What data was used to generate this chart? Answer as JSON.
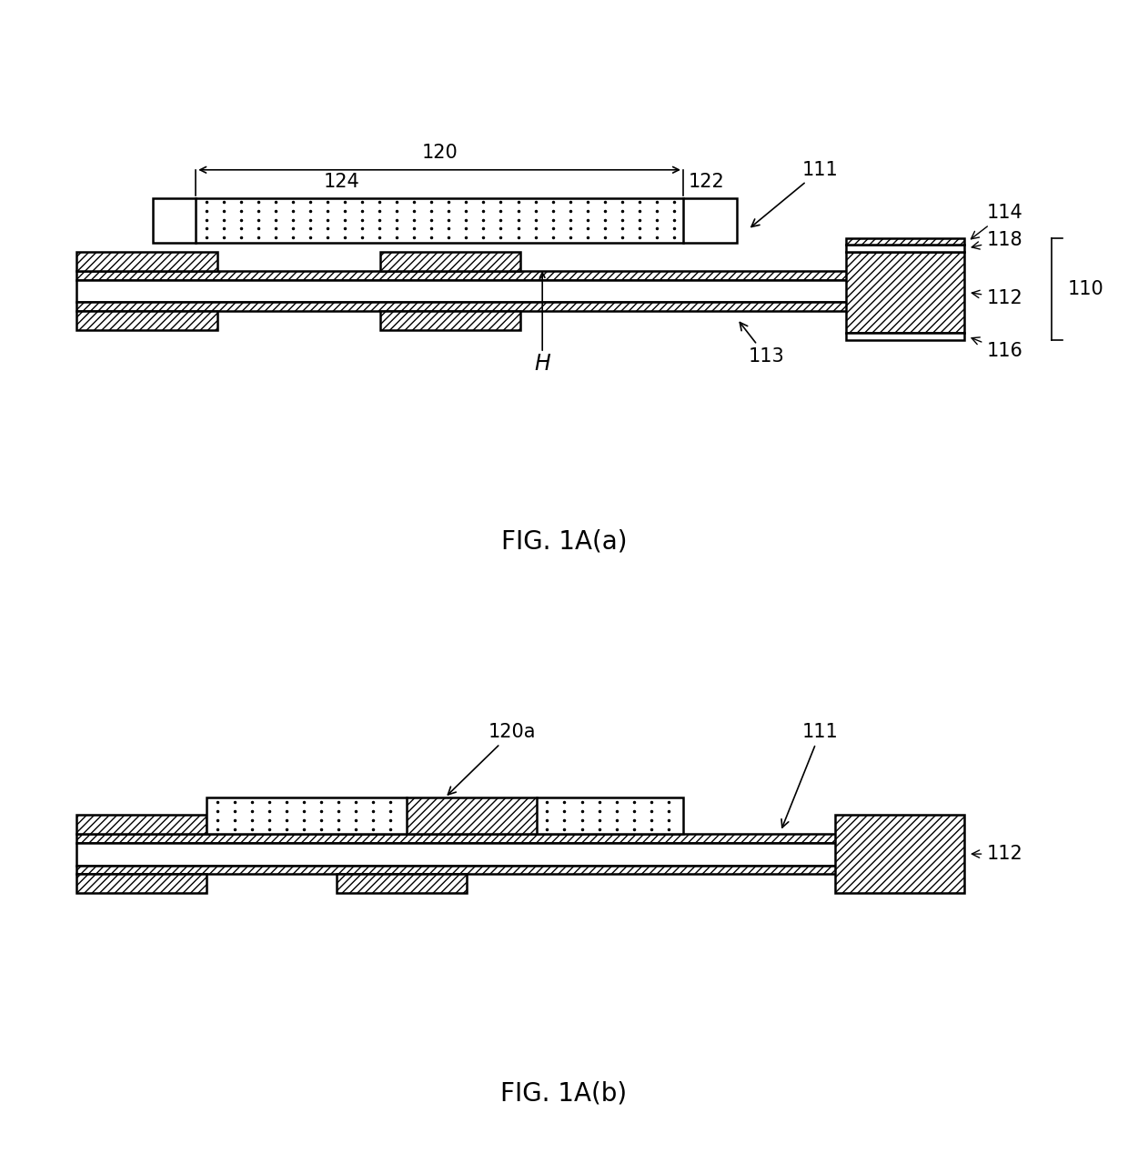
{
  "fig_width": 12.4,
  "fig_height": 12.9,
  "bg_color": "#ffffff",
  "lc": "#000000",
  "lw": 1.8,
  "label_fontsize": 20,
  "ref_fontsize": 15,
  "fig_labels": [
    "FIG. 1A(a)",
    "FIG. 1A(b)"
  ]
}
